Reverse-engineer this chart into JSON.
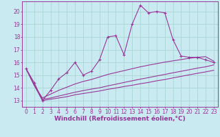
{
  "bg_color": "#c8eaf0",
  "grid_color": "#aad4d4",
  "line_color": "#993399",
  "xlabel": "Windchill (Refroidissement éolien,°C)",
  "xlabel_fontsize": 6.5,
  "xlim": [
    -0.5,
    23.5
  ],
  "ylim": [
    12.5,
    20.8
  ],
  "xticks": [
    0,
    1,
    2,
    3,
    4,
    5,
    6,
    7,
    8,
    9,
    10,
    11,
    12,
    13,
    14,
    15,
    16,
    17,
    18,
    19,
    20,
    21,
    22,
    23
  ],
  "yticks": [
    13,
    14,
    15,
    16,
    17,
    18,
    19,
    20
  ],
  "tick_fontsize": 5.5,
  "line1_x": [
    0,
    1,
    2,
    3,
    4,
    5,
    6,
    7,
    8,
    9,
    10,
    11,
    12,
    13,
    14,
    15,
    16,
    17,
    18,
    19,
    20,
    21,
    22,
    23
  ],
  "line1_y": [
    15.5,
    14.4,
    13.0,
    13.8,
    14.7,
    15.2,
    16.0,
    15.0,
    15.3,
    16.2,
    18.0,
    18.1,
    16.6,
    19.0,
    20.5,
    19.9,
    20.0,
    19.9,
    17.8,
    16.5,
    16.4,
    16.4,
    16.2,
    16.0
  ],
  "line2_x": [
    0,
    1,
    2,
    3,
    4,
    5,
    6,
    7,
    8,
    9,
    10,
    11,
    12,
    13,
    14,
    15,
    16,
    17,
    18,
    19,
    20,
    21,
    22,
    23
  ],
  "line2_y": [
    15.5,
    14.2,
    13.2,
    13.5,
    13.8,
    14.05,
    14.3,
    14.5,
    14.65,
    14.85,
    15.05,
    15.2,
    15.35,
    15.5,
    15.65,
    15.78,
    15.9,
    16.02,
    16.12,
    16.22,
    16.32,
    16.4,
    16.45,
    16.1
  ],
  "line3_x": [
    0,
    1,
    2,
    3,
    4,
    5,
    6,
    7,
    8,
    9,
    10,
    11,
    12,
    13,
    14,
    15,
    16,
    17,
    18,
    19,
    20,
    21,
    22,
    23
  ],
  "line3_y": [
    15.5,
    14.2,
    13.1,
    13.2,
    13.35,
    13.5,
    13.65,
    13.78,
    13.9,
    14.0,
    14.15,
    14.28,
    14.42,
    14.55,
    14.68,
    14.8,
    14.93,
    15.05,
    15.18,
    15.3,
    15.42,
    15.55,
    15.65,
    15.8
  ],
  "line4_x": [
    0,
    1,
    2,
    3,
    4,
    5,
    6,
    7,
    8,
    9,
    10,
    11,
    12,
    13,
    14,
    15,
    16,
    17,
    18,
    19,
    20,
    21,
    22,
    23
  ],
  "line4_y": [
    15.5,
    14.2,
    13.0,
    13.1,
    13.2,
    13.3,
    13.45,
    13.55,
    13.65,
    13.75,
    13.88,
    13.98,
    14.1,
    14.2,
    14.32,
    14.42,
    14.55,
    14.65,
    14.78,
    14.9,
    15.02,
    15.14,
    15.25,
    15.38
  ]
}
